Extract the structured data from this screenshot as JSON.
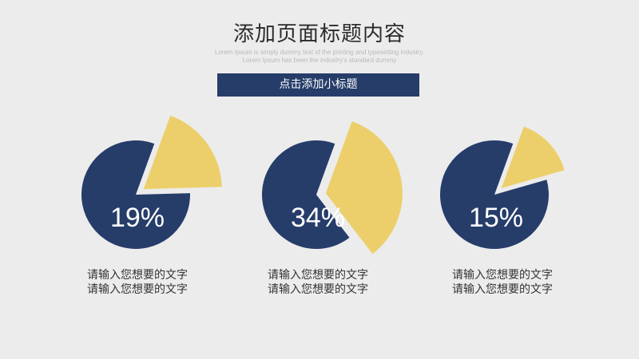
{
  "header": {
    "title": "添加页面标题内容",
    "subtitle_line1": "Lorem Ipsum is simply dummy text of the printing and typesetting industry.",
    "subtitle_line2": "Lorem Ipsum has been the industry's standard dummy",
    "banner": "点击添加小标题"
  },
  "colors": {
    "main": "#263d6a",
    "accent": "#eccf6a",
    "background": "#ececec"
  },
  "chart_data": [
    {
      "type": "pie",
      "values": [
        19,
        81
      ],
      "label": "19%",
      "caption": [
        "请输入您想要的文字",
        "请输入您想要的文字"
      ]
    },
    {
      "type": "pie",
      "values": [
        34,
        66
      ],
      "label": "34%",
      "caption": [
        "请输入您想要的文字",
        "请输入您想要的文字"
      ]
    },
    {
      "type": "pie",
      "values": [
        15,
        85
      ],
      "label": "15%",
      "caption": [
        "请输入您想要的文字",
        "请输入您想要的文字"
      ]
    }
  ]
}
